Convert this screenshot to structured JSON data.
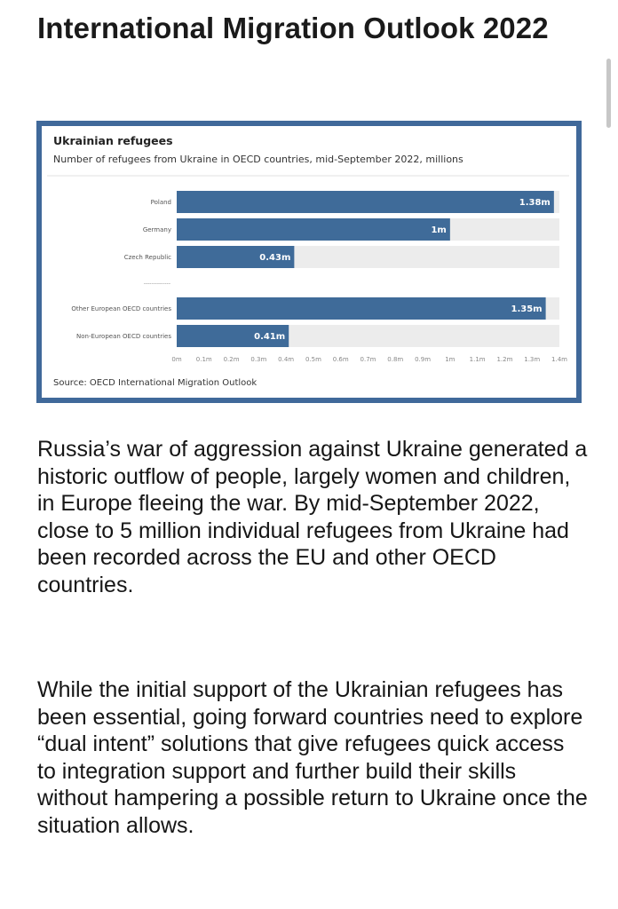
{
  "article": {
    "title": "International Migration Outlook 2022",
    "paragraphs": [
      "Russia’s war of aggression against Ukraine generated a historic outflow of people, largely women and children, in Europe fleeing the war. By mid-September 2022, close to 5 million individual refugees from Ukraine had been recorded across the EU and other OECD countries.",
      "While the initial support of the Ukrainian refugees has been essential, going forward countries need to explore “dual intent” solutions that give refugees quick access to integration support and further build their skills without hampering a possible return to Ukraine once the situation allows."
    ]
  },
  "chart_data": {
    "type": "bar",
    "orientation": "horizontal",
    "title": "Ukrainian refugees",
    "subtitle": "Number of refugees from Ukraine in OECD countries, mid-September 2022, millions",
    "source": "Source: OECD International Migration Outlook",
    "categories": [
      "Poland",
      "Germany",
      "Czech Republic",
      "",
      "Other European OECD countries",
      "Non-European OECD countries"
    ],
    "values": [
      1.38,
      1.0,
      0.43,
      null,
      1.35,
      0.41
    ],
    "data_labels": [
      "1.38m",
      "1m",
      "0.43m",
      "",
      "1.35m",
      "0.41m"
    ],
    "separator_label": "--------------",
    "xlim": [
      0,
      1.4
    ],
    "xticks": [
      "0m",
      "0.1m",
      "0.2m",
      "0.3m",
      "0.4m",
      "0.5m",
      "0.6m",
      "0.7m",
      "0.8m",
      "0.9m",
      "1m",
      "1.1m",
      "1.2m",
      "1.3m",
      "1.4m"
    ],
    "grid": false,
    "legend": "none",
    "colors": {
      "bar": "#3f6b99",
      "frame": "#40699a",
      "track": "#ececec",
      "label": "#ffffff"
    }
  }
}
